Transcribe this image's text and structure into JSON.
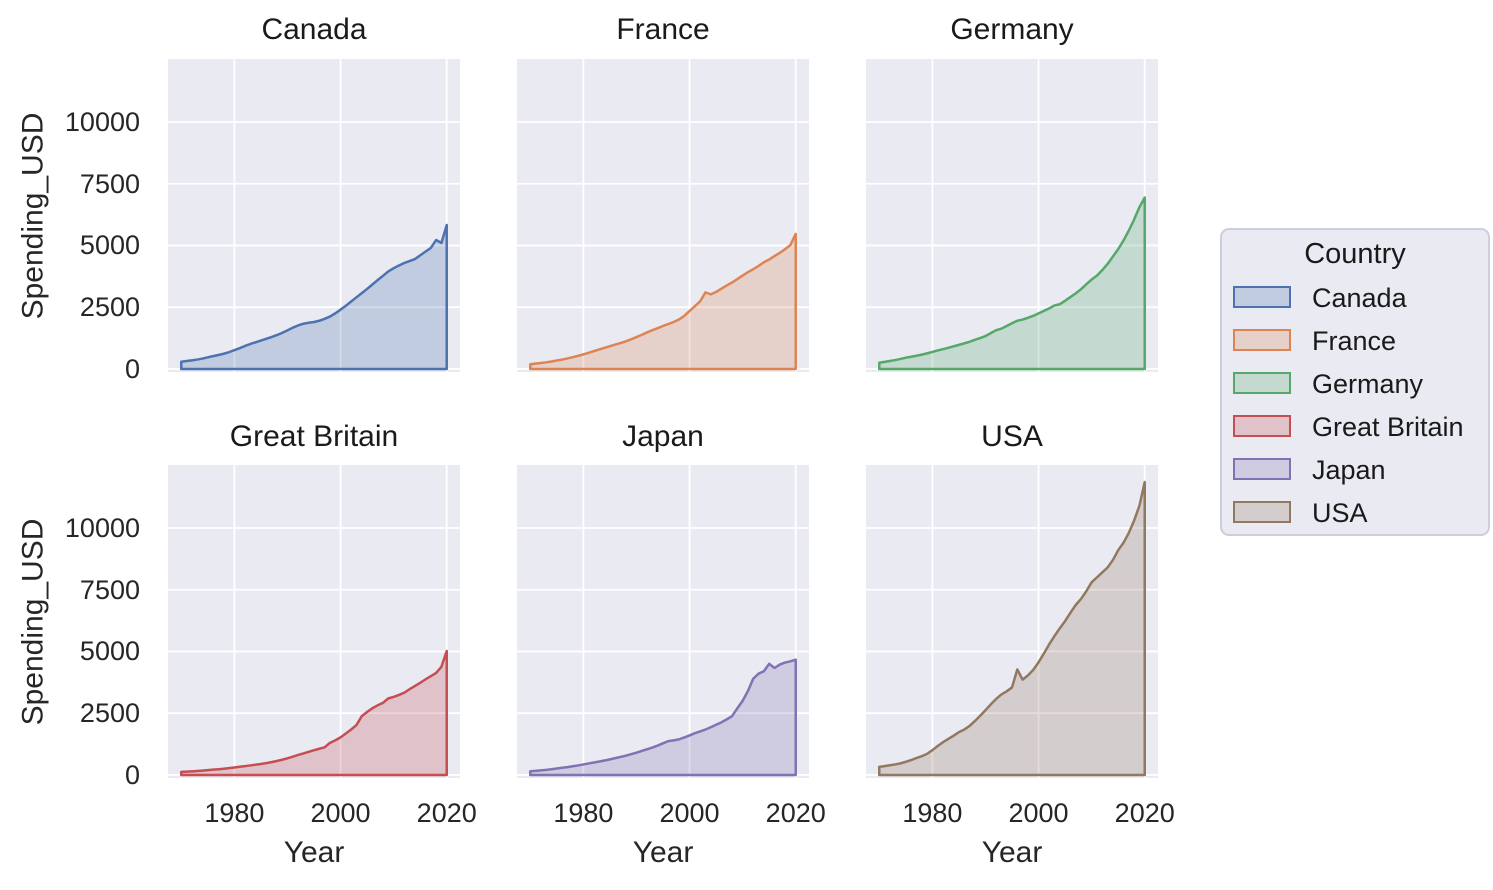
{
  "figure": {
    "ylabel": "Spending_USD",
    "xlabel": "Year",
    "panel_background": "#eaeaf2",
    "grid_color": "#ffffff",
    "text_color": "#262626",
    "figure_background": "#ffffff"
  },
  "legend": {
    "title": "Country",
    "entries": [
      {
        "label": "Canada",
        "color": "#4c72b0"
      },
      {
        "label": "France",
        "color": "#dd8452"
      },
      {
        "label": "Germany",
        "color": "#55a868"
      },
      {
        "label": "Great Britain",
        "color": "#c44e52"
      },
      {
        "label": "Japan",
        "color": "#8172b3"
      },
      {
        "label": "USA",
        "color": "#937860"
      }
    ]
  },
  "chart_data": {
    "type": "area",
    "title": "",
    "xlabel": "Year",
    "ylabel": "Spending_USD",
    "facet_layout": {
      "rows": 2,
      "cols": 3
    },
    "grid": true,
    "legend_position": "right",
    "xticks": [
      1980,
      2000,
      2020
    ],
    "yticks": [
      0,
      2500,
      5000,
      7500,
      10000
    ],
    "xlim": [
      1967.5,
      2022.5
    ],
    "ylim": [
      -124,
      12550
    ],
    "x": [
      1970,
      1971,
      1972,
      1973,
      1974,
      1975,
      1976,
      1977,
      1978,
      1979,
      1980,
      1981,
      1982,
      1983,
      1984,
      1985,
      1986,
      1987,
      1988,
      1989,
      1990,
      1991,
      1992,
      1993,
      1994,
      1995,
      1996,
      1997,
      1998,
      1999,
      2000,
      2001,
      2002,
      2003,
      2004,
      2005,
      2006,
      2007,
      2008,
      2009,
      2010,
      2011,
      2012,
      2013,
      2014,
      2015,
      2016,
      2017,
      2018,
      2019,
      2020
    ],
    "series": [
      {
        "name": "Canada",
        "color": "#4c72b0",
        "values": [
          294,
          320,
          348,
          380,
          420,
          470,
          520,
          565,
          615,
          680,
          760,
          840,
          930,
          1010,
          1080,
          1150,
          1220,
          1290,
          1370,
          1460,
          1560,
          1670,
          1760,
          1830,
          1870,
          1900,
          1950,
          2030,
          2120,
          2250,
          2400,
          2560,
          2730,
          2900,
          3070,
          3240,
          3420,
          3600,
          3770,
          3950,
          4080,
          4190,
          4290,
          4370,
          4450,
          4600,
          4750,
          4900,
          5220,
          5100,
          5828
        ]
      },
      {
        "name": "France",
        "color": "#dd8452",
        "values": [
          192,
          215,
          240,
          268,
          300,
          340,
          380,
          425,
          475,
          530,
          590,
          655,
          725,
          790,
          855,
          920,
          985,
          1050,
          1120,
          1200,
          1290,
          1380,
          1480,
          1570,
          1650,
          1740,
          1820,
          1900,
          2000,
          2150,
          2350,
          2540,
          2740,
          3100,
          3020,
          3120,
          3250,
          3380,
          3500,
          3640,
          3780,
          3920,
          4040,
          4170,
          4320,
          4430,
          4570,
          4700,
          4850,
          5020,
          5468
        ]
      },
      {
        "name": "Germany",
        "color": "#55a868",
        "values": [
          252,
          285,
          320,
          360,
          405,
          455,
          495,
          535,
          580,
          630,
          690,
          750,
          800,
          855,
          915,
          975,
          1035,
          1100,
          1180,
          1250,
          1330,
          1450,
          1570,
          1630,
          1740,
          1850,
          1950,
          2000,
          2070,
          2150,
          2250,
          2350,
          2450,
          2570,
          2620,
          2760,
          2910,
          3060,
          3230,
          3430,
          3620,
          3780,
          4000,
          4250,
          4550,
          4850,
          5200,
          5600,
          6050,
          6550,
          6939
        ]
      },
      {
        "name": "Great Britain",
        "color": "#c44e52",
        "values": [
          123,
          134,
          146,
          160,
          176,
          196,
          214,
          232,
          252,
          275,
          300,
          330,
          355,
          385,
          415,
          445,
          480,
          520,
          565,
          615,
          675,
          740,
          810,
          870,
          935,
          1000,
          1060,
          1120,
          1300,
          1400,
          1520,
          1680,
          1840,
          2020,
          2380,
          2550,
          2700,
          2820,
          2920,
          3100,
          3160,
          3240,
          3330,
          3470,
          3600,
          3730,
          3870,
          4000,
          4130,
          4380,
          5019
        ]
      },
      {
        "name": "Japan",
        "color": "#8172b3",
        "values": [
          150,
          165,
          183,
          205,
          230,
          262,
          290,
          318,
          350,
          385,
          425,
          465,
          505,
          545,
          585,
          630,
          680,
          730,
          780,
          840,
          900,
          970,
          1040,
          1110,
          1190,
          1280,
          1370,
          1400,
          1440,
          1520,
          1600,
          1690,
          1760,
          1840,
          1930,
          2030,
          2130,
          2250,
          2380,
          2700,
          3000,
          3400,
          3900,
          4100,
          4200,
          4500,
          4330,
          4470,
          4550,
          4600,
          4666
        ]
      },
      {
        "name": "USA",
        "color": "#937860",
        "values": [
          327,
          357,
          391,
          425,
          468,
          531,
          604,
          682,
          760,
          853,
          1002,
          1171,
          1325,
          1460,
          1590,
          1734,
          1837,
          1984,
          2180,
          2395,
          2620,
          2856,
          3076,
          3259,
          3386,
          3543,
          4270,
          3860,
          4033,
          4254,
          4560,
          4914,
          5288,
          5625,
          5936,
          6230,
          6566,
          6881,
          7127,
          7442,
          7800,
          8000,
          8200,
          8400,
          8700,
          9100,
          9400,
          9800,
          10300,
          10900,
          11859
        ]
      }
    ]
  }
}
